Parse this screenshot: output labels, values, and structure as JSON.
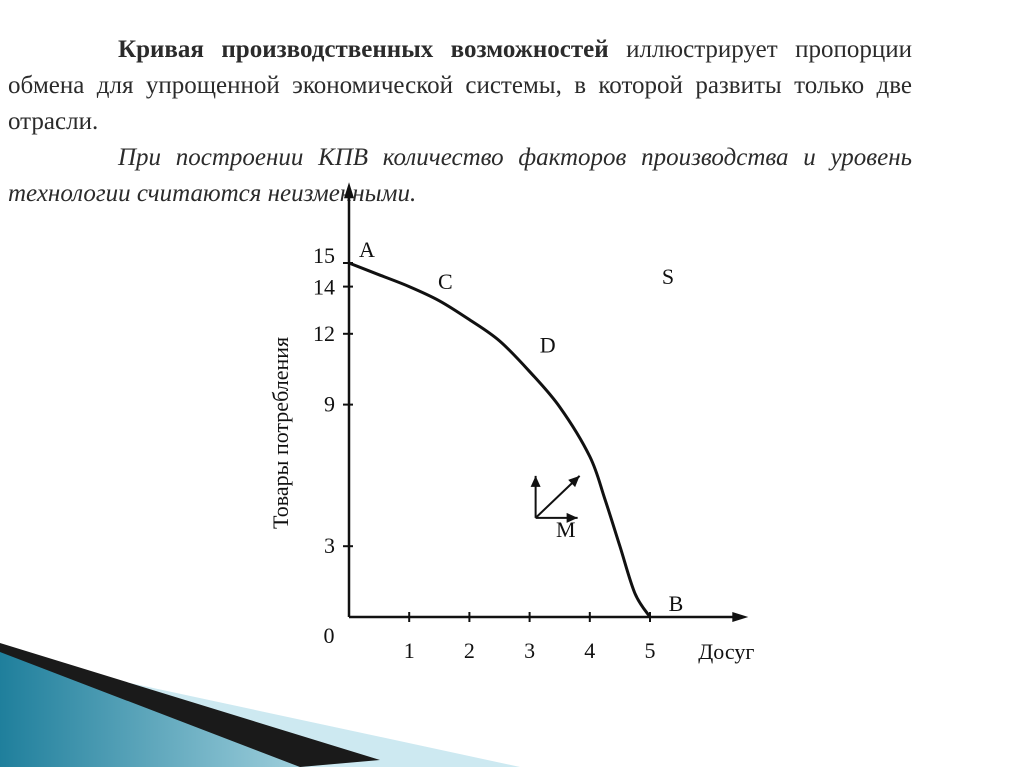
{
  "slide": {
    "title": "Кривая производственных возможностей",
    "paragraph1_rest": "иллюстрирует пропорции обмена для упрощенной экономической системы, в которой развиты только две отрасли.",
    "paragraph2": "При построении КПВ количество факторов производства и уровень технологии считаются неизменными."
  },
  "chart_data": {
    "type": "line",
    "title": "",
    "xlabel": "Досуг",
    "ylabel": "Товары потребления",
    "origin_label": "0",
    "x_ticks": [
      "1",
      "2",
      "3",
      "4",
      "5"
    ],
    "y_ticks": [
      "3",
      "9",
      "12",
      "14",
      "15"
    ],
    "xlim": [
      0,
      6.5
    ],
    "ylim": [
      0,
      18
    ],
    "series": [
      {
        "x": [
          0,
          0.5,
          1,
          1.5,
          2,
          2.5,
          3,
          3.5,
          4,
          4.25,
          4.5,
          4.75,
          5
        ],
        "y": [
          15,
          14.5,
          14,
          13.4,
          12.6,
          11.7,
          10.4,
          8.9,
          6.8,
          5.0,
          3.0,
          1.0,
          0
        ]
      }
    ],
    "points": [
      {
        "label": "A",
        "x": 0,
        "y": 15
      },
      {
        "label": "C",
        "x": 1.6,
        "y": 13.9
      },
      {
        "label": "D",
        "x": 3.3,
        "y": 11.2
      },
      {
        "label": "S",
        "x": 5.3,
        "y": 14.1
      },
      {
        "label": "M",
        "x": 3.6,
        "y": 3.4
      },
      {
        "label": "B",
        "x": 5,
        "y": 0
      }
    ],
    "arrows_origin": {
      "x": 3.1,
      "y": 4.2
    },
    "grid": false
  },
  "decor": {
    "stripe_dark": "#1a1a1a",
    "stripe_teal": "#2a8aa6",
    "stripe_light": "#8ec9d8"
  }
}
